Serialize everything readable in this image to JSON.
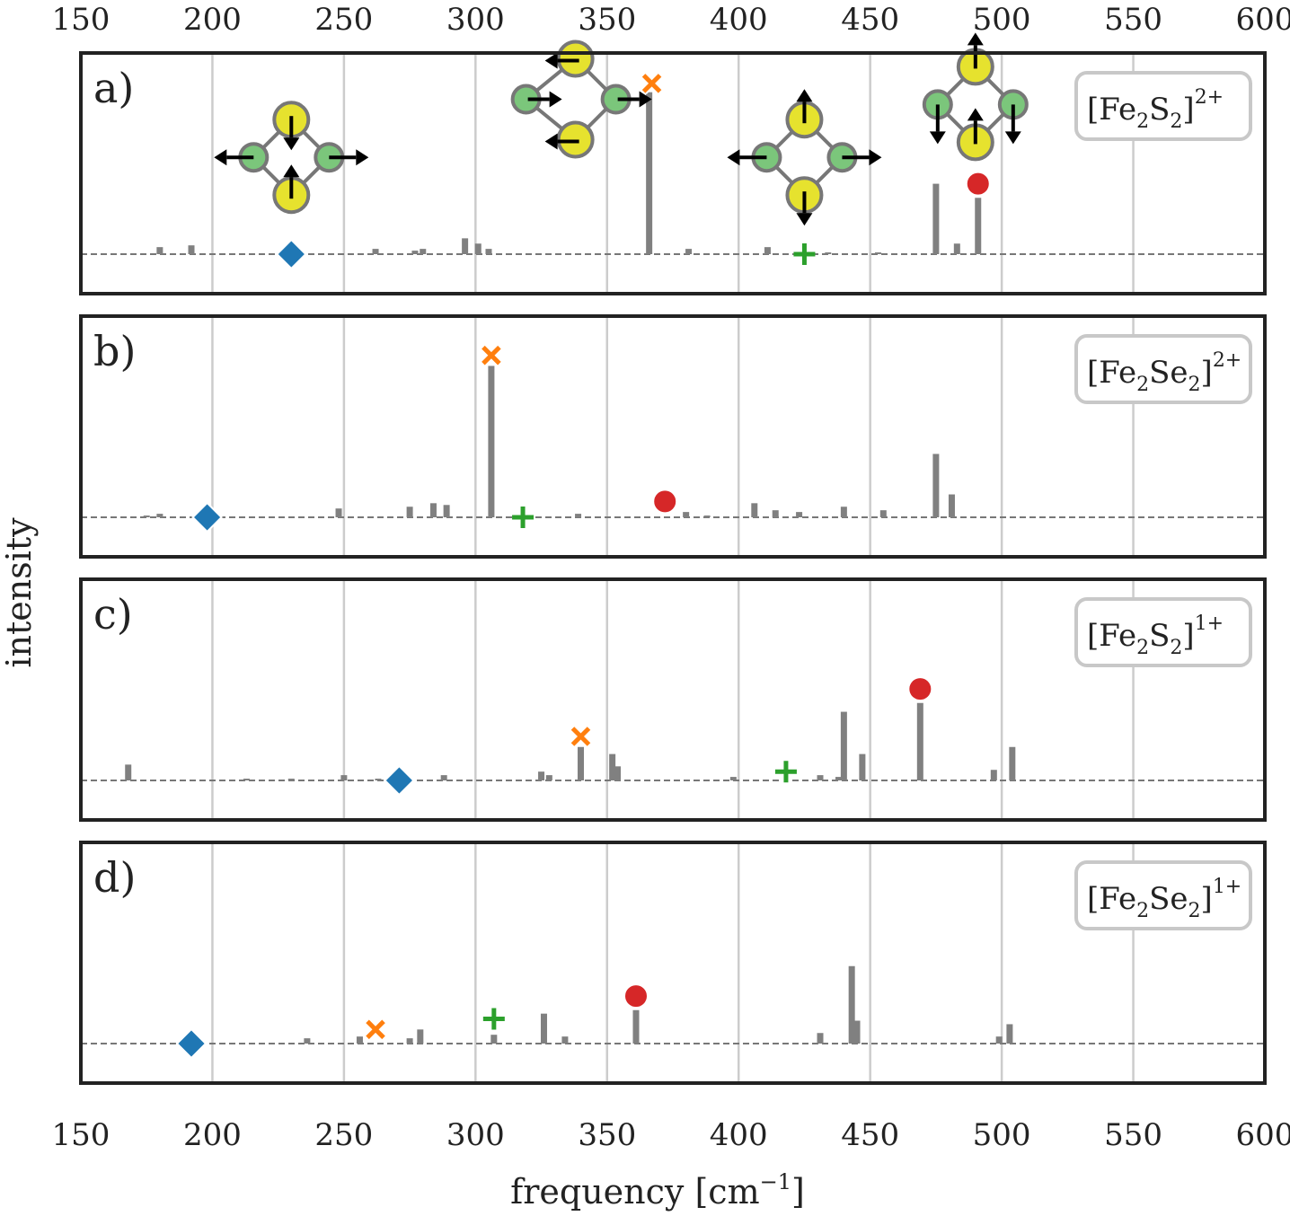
{
  "x_axis": {
    "label": "frequency [cm",
    "label_sup": "−1",
    "label_close": "]",
    "ticks": [
      150,
      200,
      250,
      300,
      350,
      400,
      450,
      500,
      550,
      600
    ]
  },
  "y_axis": {
    "label": "intensity"
  },
  "colors": {
    "stick": "#808080",
    "grid": "#cccccc",
    "baseline": "#777777",
    "frame": "#222222",
    "diamond": "#1f77b4",
    "cross": "#ff7f0e",
    "plus": "#2ca02c",
    "circle": "#d62728",
    "fe_atom": "#7bc67b",
    "s_atom": "#e6e22e"
  },
  "chart_data": [
    {
      "type": "bar",
      "panel": "a)",
      "species": {
        "base": "[Fe",
        "sub1": "2",
        "mid": "S",
        "sub2": "2",
        "close": "]",
        "charge": "2+"
      },
      "xlim": [
        150,
        600
      ],
      "sticks": [
        {
          "x": 180,
          "y": 0.04
        },
        {
          "x": 192,
          "y": 0.05
        },
        {
          "x": 262,
          "y": 0.03
        },
        {
          "x": 277,
          "y": 0.02
        },
        {
          "x": 280,
          "y": 0.03
        },
        {
          "x": 296,
          "y": 0.09
        },
        {
          "x": 301,
          "y": 0.06
        },
        {
          "x": 305,
          "y": 0.03
        },
        {
          "x": 366,
          "y": 0.92
        },
        {
          "x": 381,
          "y": 0.03
        },
        {
          "x": 411,
          "y": 0.04
        },
        {
          "x": 434,
          "y": 0.01
        },
        {
          "x": 453,
          "y": 0.01
        },
        {
          "x": 475,
          "y": 0.4
        },
        {
          "x": 483,
          "y": 0.06
        },
        {
          "x": 491,
          "y": 0.32
        }
      ],
      "markers": [
        {
          "symbol": "diamond",
          "x": 230,
          "y": 0.0
        },
        {
          "symbol": "cross",
          "x": 367,
          "y": 0.97
        },
        {
          "symbol": "plus",
          "x": 425,
          "y": 0.0
        },
        {
          "symbol": "circle",
          "x": 491,
          "y": 0.4
        }
      ],
      "mode_icons": [
        {
          "mode": "diamond",
          "x": 230,
          "y": 0.55,
          "arrows": "fe-out-s-in"
        },
        {
          "mode": "cross",
          "x": 338,
          "y": 0.88,
          "arrows": "asym"
        },
        {
          "mode": "plus",
          "x": 425,
          "y": 0.55,
          "arrows": "fe-out-s-out"
        },
        {
          "mode": "circle",
          "x": 490,
          "y": 0.85,
          "arrows": "s-up"
        }
      ]
    },
    {
      "type": "bar",
      "panel": "b)",
      "species": {
        "base": "[Fe",
        "sub1": "2",
        "mid": "Se",
        "sub2": "2",
        "close": "]",
        "charge": "2+"
      },
      "xlim": [
        150,
        600
      ],
      "sticks": [
        {
          "x": 175,
          "y": 0.01
        },
        {
          "x": 180,
          "y": 0.02
        },
        {
          "x": 197,
          "y": 0.01
        },
        {
          "x": 248,
          "y": 0.05
        },
        {
          "x": 275,
          "y": 0.06
        },
        {
          "x": 284,
          "y": 0.08
        },
        {
          "x": 289,
          "y": 0.07
        },
        {
          "x": 306,
          "y": 0.86
        },
        {
          "x": 339,
          "y": 0.02
        },
        {
          "x": 380,
          "y": 0.03
        },
        {
          "x": 388,
          "y": 0.01
        },
        {
          "x": 406,
          "y": 0.08
        },
        {
          "x": 414,
          "y": 0.04
        },
        {
          "x": 423,
          "y": 0.03
        },
        {
          "x": 440,
          "y": 0.06
        },
        {
          "x": 455,
          "y": 0.04
        },
        {
          "x": 475,
          "y": 0.36
        },
        {
          "x": 481,
          "y": 0.13
        }
      ],
      "markers": [
        {
          "symbol": "diamond",
          "x": 198,
          "y": 0.0
        },
        {
          "symbol": "cross",
          "x": 306,
          "y": 0.92
        },
        {
          "symbol": "plus",
          "x": 318,
          "y": 0.0
        },
        {
          "symbol": "circle",
          "x": 372,
          "y": 0.09
        }
      ]
    },
    {
      "type": "bar",
      "panel": "c)",
      "species": {
        "base": "[Fe",
        "sub1": "2",
        "mid": "S",
        "sub2": "2",
        "close": "]",
        "charge": "1+"
      },
      "xlim": [
        150,
        600
      ],
      "sticks": [
        {
          "x": 168,
          "y": 0.09
        },
        {
          "x": 213,
          "y": 0.01
        },
        {
          "x": 230,
          "y": 0.01
        },
        {
          "x": 250,
          "y": 0.03
        },
        {
          "x": 263,
          "y": 0.01
        },
        {
          "x": 288,
          "y": 0.03
        },
        {
          "x": 325,
          "y": 0.05
        },
        {
          "x": 328,
          "y": 0.03
        },
        {
          "x": 340,
          "y": 0.19
        },
        {
          "x": 352,
          "y": 0.15
        },
        {
          "x": 354,
          "y": 0.08
        },
        {
          "x": 398,
          "y": 0.02
        },
        {
          "x": 431,
          "y": 0.03
        },
        {
          "x": 438,
          "y": 0.02
        },
        {
          "x": 440,
          "y": 0.39
        },
        {
          "x": 447,
          "y": 0.15
        },
        {
          "x": 469,
          "y": 0.44
        },
        {
          "x": 497,
          "y": 0.06
        },
        {
          "x": 504,
          "y": 0.19
        }
      ],
      "markers": [
        {
          "symbol": "diamond",
          "x": 271,
          "y": 0.0
        },
        {
          "symbol": "cross",
          "x": 340,
          "y": 0.25
        },
        {
          "symbol": "plus",
          "x": 418,
          "y": 0.05
        },
        {
          "symbol": "circle",
          "x": 469,
          "y": 0.52
        }
      ]
    },
    {
      "type": "bar",
      "panel": "d)",
      "species": {
        "base": "[Fe",
        "sub1": "2",
        "mid": "Se",
        "sub2": "2",
        "close": "]",
        "charge": "1+"
      },
      "xlim": [
        150,
        600
      ],
      "sticks": [
        {
          "x": 236,
          "y": 0.03
        },
        {
          "x": 256,
          "y": 0.04
        },
        {
          "x": 275,
          "y": 0.03
        },
        {
          "x": 279,
          "y": 0.08
        },
        {
          "x": 307,
          "y": 0.05
        },
        {
          "x": 326,
          "y": 0.17
        },
        {
          "x": 334,
          "y": 0.04
        },
        {
          "x": 361,
          "y": 0.19
        },
        {
          "x": 431,
          "y": 0.06
        },
        {
          "x": 443,
          "y": 0.44
        },
        {
          "x": 445,
          "y": 0.13
        },
        {
          "x": 499,
          "y": 0.04
        },
        {
          "x": 503,
          "y": 0.11
        }
      ],
      "markers": [
        {
          "symbol": "diamond",
          "x": 192,
          "y": 0.0
        },
        {
          "symbol": "cross",
          "x": 262,
          "y": 0.08
        },
        {
          "symbol": "plus",
          "x": 307,
          "y": 0.14
        },
        {
          "symbol": "circle",
          "x": 361,
          "y": 0.27
        }
      ]
    }
  ]
}
